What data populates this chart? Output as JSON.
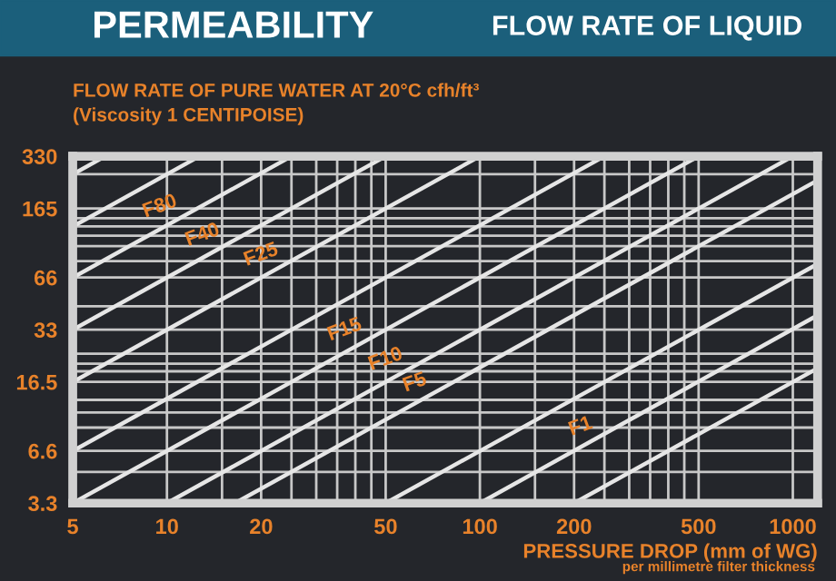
{
  "chart_data": {
    "type": "line",
    "title": "PERMEABILITY",
    "subtitle": "FLOW RATE OF LIQUID",
    "ylabel": "FLOW RATE OF PURE WATER AT 20°C cfh/ft³\n(Viscosity 1 CENTIPOISE)",
    "xlabel": "PRESSURE DROP (mm of WG)",
    "log": "xy",
    "grid": true,
    "marker": "none",
    "line_style": "solid",
    "xlim": [
      5,
      1200
    ],
    "ylim": [
      3.3,
      330
    ],
    "xticks": [
      5,
      10,
      {
        "value": 15,
        "label": null
      },
      20,
      {
        "value": 25,
        "label": null
      },
      {
        "value": 30,
        "label": null
      },
      {
        "value": 35,
        "label": null
      },
      {
        "value": 40,
        "label": null
      },
      {
        "value": 45,
        "label": null
      },
      50,
      100,
      {
        "value": 150,
        "label": null
      },
      200,
      {
        "value": 250,
        "label": null
      },
      {
        "value": 300,
        "label": null
      },
      {
        "value": 350,
        "label": null
      },
      {
        "value": 400,
        "label": null
      },
      {
        "value": 450,
        "label": null
      },
      500,
      1000
    ],
    "yticks": [
      3.3,
      {
        "value": 5,
        "label": null
      },
      6.6,
      {
        "value": 9,
        "label": null
      },
      {
        "value": 11,
        "label": null
      },
      {
        "value": 13,
        "label": null
      },
      16.5,
      {
        "value": 19,
        "label": null
      },
      {
        "value": 21,
        "label": null
      },
      {
        "value": 24,
        "label": null
      },
      33,
      {
        "value": 45,
        "label": null
      },
      66,
      {
        "value": 82,
        "label": null
      },
      {
        "value": 100,
        "label": null
      },
      {
        "value": 115,
        "label": null
      },
      {
        "value": 130,
        "label": null
      },
      {
        "value": 145,
        "label": null
      },
      165,
      {
        "value": 260,
        "label": null
      },
      330
    ],
    "series": [
      {
        "color": "#e6e6e6",
        "x": [
          5,
          6.35
        ],
        "values": [
          260,
          330
        ]
      },
      {
        "color": "#e6e6e6",
        "x": [
          5,
          12.7
        ],
        "values": [
          130,
          330
        ]
      },
      {
        "color": "#e6e6e6",
        "x": [
          5,
          25
        ],
        "values": [
          66,
          330
        ]
      },
      {
        "color": "#e6e6e6",
        "x": [
          5,
          50
        ],
        "values": [
          33,
          330
        ]
      },
      {
        "color": "#e6e6e6",
        "x": [
          5,
          100
        ],
        "values": [
          16.5,
          330
        ]
      },
      {
        "color": "#e6e6e6",
        "x": [
          5,
          250
        ],
        "values": [
          6.6,
          330
        ]
      },
      {
        "color": "#e6e6e6",
        "x": [
          5,
          500
        ],
        "values": [
          3.3,
          330
        ]
      },
      {
        "color": "#e6e6e6",
        "x": [
          10,
          1000
        ],
        "values": [
          3.3,
          330
        ]
      },
      {
        "color": "#e6e6e6",
        "x": [
          16.5,
          1200
        ],
        "values": [
          3.3,
          240
        ]
      },
      {
        "color": "#e6e6e6",
        "x": [
          50,
          1200
        ],
        "values": [
          3.3,
          79
        ]
      },
      {
        "color": "#e6e6e6",
        "x": [
          100,
          1200
        ],
        "values": [
          3.3,
          40
        ]
      },
      {
        "color": "#e6e6e6",
        "x": [
          200,
          1200
        ],
        "values": [
          3.3,
          19.8
        ]
      }
    ],
    "annotations": [
      {
        "text": "F80",
        "x": 9.5,
        "y": 125.4
      },
      {
        "text": "F40",
        "x": 13,
        "y": 85.8
      },
      {
        "text": "F25",
        "x": 20,
        "y": 66
      },
      {
        "text": "F15",
        "x": 37,
        "y": 24.4
      },
      {
        "text": "F10",
        "x": 50,
        "y": 16.5
      },
      {
        "text": "F5",
        "x": 62,
        "y": 12.4
      },
      {
        "text": "F1",
        "x": 210,
        "y": 6.93
      },
      "per millimetre filter thickness"
    ]
  }
}
